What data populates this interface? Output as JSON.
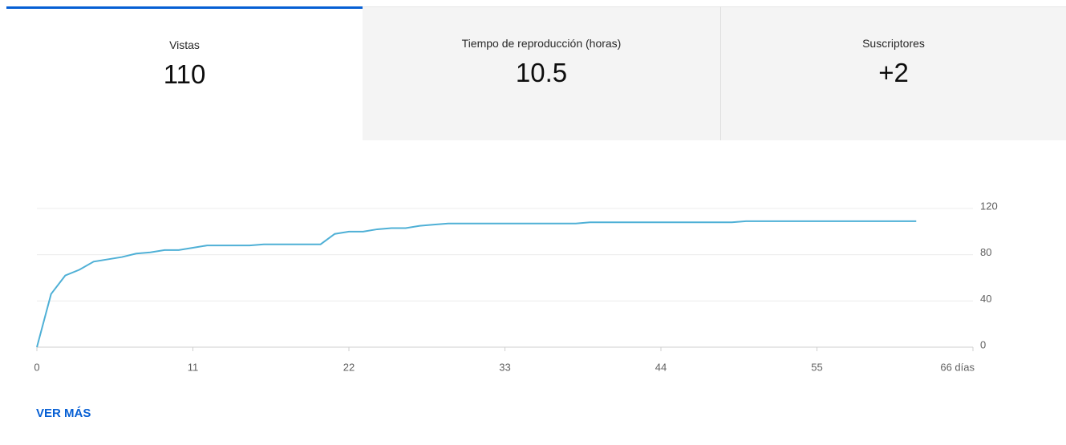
{
  "tabs": [
    {
      "label": "Vistas",
      "value": "110"
    },
    {
      "label": "Tiempo de reproducción (horas)",
      "value": "10.5"
    },
    {
      "label": "Suscriptores",
      "value": "+2"
    }
  ],
  "chart_data": {
    "type": "line",
    "x": [
      0,
      1,
      2,
      3,
      4,
      5,
      6,
      7,
      8,
      9,
      10,
      11,
      12,
      13,
      14,
      15,
      16,
      17,
      18,
      19,
      20,
      21,
      22,
      23,
      24,
      25,
      26,
      27,
      28,
      29,
      30,
      31,
      32,
      33,
      34,
      35,
      36,
      37,
      38,
      39,
      40,
      41,
      42,
      43,
      44,
      45,
      46,
      47,
      48,
      49,
      50,
      51,
      52,
      53,
      54,
      55,
      56,
      57,
      58,
      59,
      60,
      61,
      62
    ],
    "series": [
      {
        "name": "Vistas",
        "color": "#4fb0d6",
        "values": [
          0,
          46,
          62,
          67,
          74,
          76,
          78,
          81,
          82,
          84,
          84,
          86,
          88,
          88,
          88,
          88,
          89,
          89,
          89,
          89,
          89,
          98,
          100,
          100,
          102,
          103,
          103,
          105,
          106,
          107,
          107,
          107,
          107,
          107,
          107,
          107,
          107,
          107,
          107,
          108,
          108,
          108,
          108,
          108,
          108,
          108,
          108,
          108,
          108,
          108,
          109,
          109,
          109,
          109,
          109,
          109,
          109,
          109,
          109,
          109,
          109,
          109,
          109
        ]
      }
    ],
    "xlim": [
      0,
      66
    ],
    "xticks": [
      0,
      11,
      22,
      33,
      44,
      55,
      {
        "value": 66,
        "label": "66 días"
      }
    ],
    "ylim": [
      0,
      120
    ],
    "yticks": [
      0,
      40,
      80,
      120
    ],
    "grid": true
  },
  "link": "VER MÁS"
}
